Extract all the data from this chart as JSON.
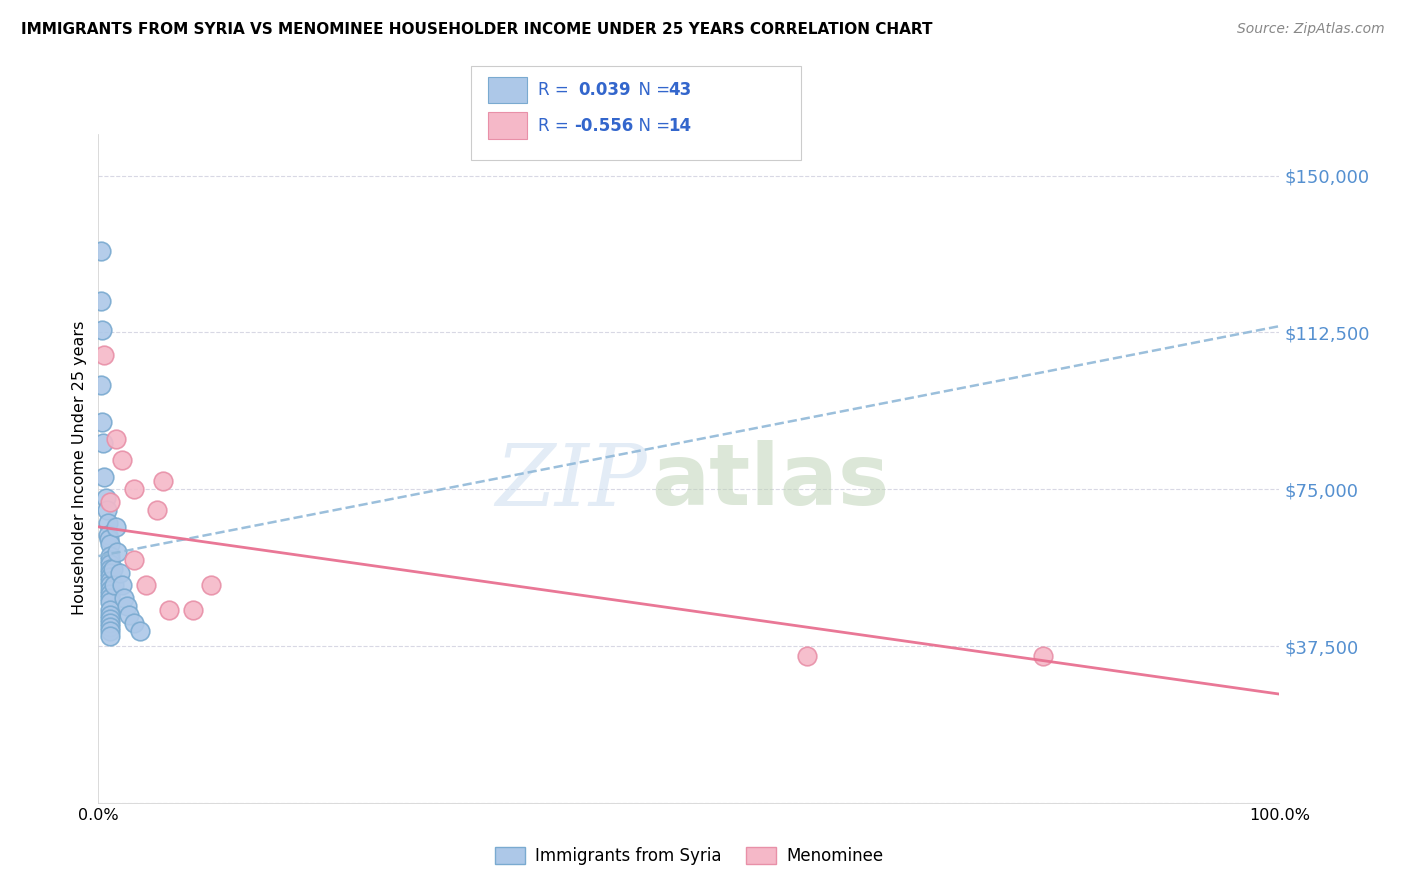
{
  "title": "IMMIGRANTS FROM SYRIA VS MENOMINEE HOUSEHOLDER INCOME UNDER 25 YEARS CORRELATION CHART",
  "source": "Source: ZipAtlas.com",
  "ylabel": "Householder Income Under 25 years",
  "xmin": 0.0,
  "xmax": 1.0,
  "ymin": 0,
  "ymax": 160000,
  "yticks": [
    0,
    37500,
    75000,
    112500,
    150000
  ],
  "ytick_labels": [
    "",
    "$37,500",
    "$75,000",
    "$112,500",
    "$150,000"
  ],
  "legend_label_blue": "Immigrants from Syria",
  "legend_label_pink": "Menominee",
  "blue_marker_color": "#adc8e8",
  "blue_edge_color": "#7aaad0",
  "pink_marker_color": "#f5b8c8",
  "pink_edge_color": "#e890a8",
  "blue_line_color": "#90b8d8",
  "pink_line_color": "#e87090",
  "tick_color": "#5590d0",
  "text_color": "#3366cc",
  "grid_color": "#d8d8e4",
  "blue_x": [
    0.002,
    0.002,
    0.003,
    0.002,
    0.003,
    0.004,
    0.005,
    0.006,
    0.007,
    0.008,
    0.008,
    0.009,
    0.01,
    0.01,
    0.01,
    0.01,
    0.01,
    0.01,
    0.01,
    0.01,
    0.01,
    0.01,
    0.01,
    0.01,
    0.01,
    0.01,
    0.01,
    0.01,
    0.01,
    0.01,
    0.01,
    0.01,
    0.012,
    0.013,
    0.015,
    0.016,
    0.018,
    0.02,
    0.022,
    0.024,
    0.026,
    0.03,
    0.035
  ],
  "blue_y": [
    132000,
    120000,
    113000,
    100000,
    91000,
    86000,
    78000,
    73000,
    70000,
    67000,
    64000,
    63000,
    62000,
    59000,
    58000,
    57000,
    56000,
    55000,
    54000,
    53000,
    52000,
    51000,
    50000,
    49000,
    48000,
    46000,
    45000,
    44000,
    43000,
    42000,
    41000,
    40000,
    56000,
    52000,
    66000,
    60000,
    55000,
    52000,
    49000,
    47000,
    45000,
    43000,
    41000
  ],
  "pink_x": [
    0.005,
    0.01,
    0.015,
    0.02,
    0.03,
    0.03,
    0.04,
    0.05,
    0.055,
    0.06,
    0.08,
    0.095,
    0.6,
    0.8
  ],
  "pink_y": [
    107000,
    72000,
    87000,
    82000,
    75000,
    58000,
    52000,
    70000,
    77000,
    46000,
    46000,
    52000,
    35000,
    35000
  ],
  "blue_trend_x0": 0.0,
  "blue_trend_x1": 1.0,
  "blue_trend_y0": 59000,
  "blue_trend_y1": 114000,
  "pink_trend_x0": 0.0,
  "pink_trend_x1": 1.0,
  "pink_trend_y0": 66000,
  "pink_trend_y1": 26000
}
